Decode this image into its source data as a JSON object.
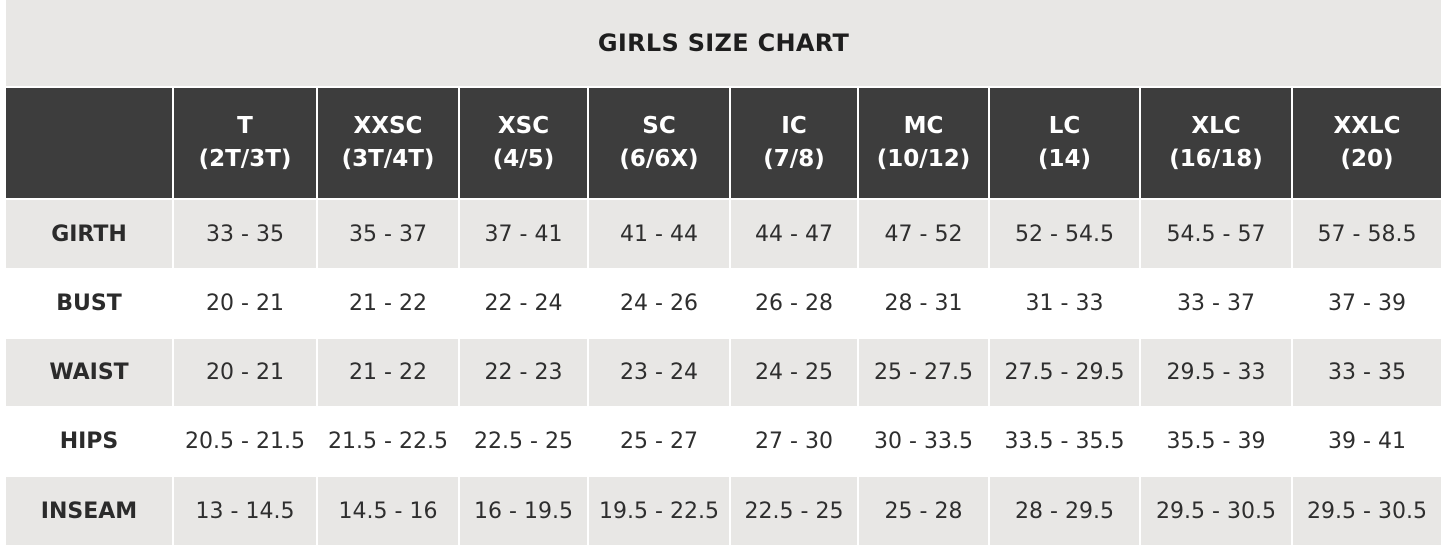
{
  "title": "GIRLS SIZE CHART",
  "columns": [
    {
      "size": "T",
      "equiv": "(2T/3T)"
    },
    {
      "size": "XXSC",
      "equiv": "(3T/4T)"
    },
    {
      "size": "XSC",
      "equiv": "(4/5)"
    },
    {
      "size": "SC",
      "equiv": "(6/6X)"
    },
    {
      "size": "IC",
      "equiv": "(7/8)"
    },
    {
      "size": "MC",
      "equiv": "(10/12)"
    },
    {
      "size": "LC",
      "equiv": "(14)"
    },
    {
      "size": "XLC",
      "equiv": "(16/18)"
    },
    {
      "size": "XXLC",
      "equiv": "(20)"
    }
  ],
  "rows": [
    {
      "label": "GIRTH",
      "values": [
        "33 - 35",
        "35 - 37",
        "37 - 41",
        "41 - 44",
        "44 - 47",
        "47 - 52",
        "52 - 54.5",
        "54.5 - 57",
        "57 - 58.5"
      ]
    },
    {
      "label": "BUST",
      "values": [
        "20 - 21",
        "21 - 22",
        "22 - 24",
        "24 - 26",
        "26 - 28",
        "28 - 31",
        "31 - 33",
        "33 - 37",
        "37 - 39"
      ]
    },
    {
      "label": "WAIST",
      "values": [
        "20 - 21",
        "21 - 22",
        "22 - 23",
        "23 - 24",
        "24 - 25",
        "25 - 27.5",
        "27.5 - 29.5",
        "29.5 - 33",
        "33 - 35"
      ]
    },
    {
      "label": "HIPS",
      "values": [
        "20.5 - 21.5",
        "21.5 - 22.5",
        "22.5 - 25",
        "25 - 27",
        "27 - 30",
        "30 - 33.5",
        "33.5 - 35.5",
        "35.5 - 39",
        "39 - 41"
      ]
    },
    {
      "label": "INSEAM",
      "values": [
        "13 - 14.5",
        "14.5 - 16",
        "16 - 19.5",
        "19.5 - 22.5",
        "22.5 - 25",
        "25 - 28",
        "28 - 29.5",
        "29.5 - 30.5",
        "29.5 - 30.5"
      ]
    }
  ],
  "colors": {
    "header_bg": "#3d3d3d",
    "band_gray": "#e8e7e5",
    "band_white": "#ffffff"
  }
}
